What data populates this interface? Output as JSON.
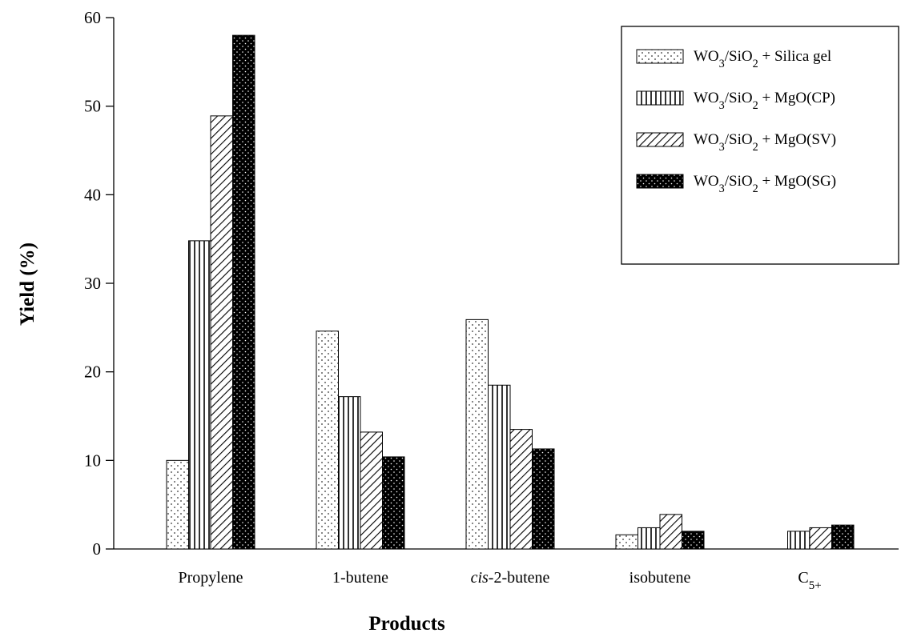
{
  "chart_data": {
    "type": "bar",
    "title": "",
    "xlabel": "Products",
    "ylabel": "Yield (%)",
    "ylim": [
      0,
      60
    ],
    "yticks": [
      0,
      10,
      20,
      30,
      40,
      50,
      60
    ],
    "grid": false,
    "legend_position": "top-right",
    "categories": [
      "Propylene",
      "1-butene",
      "cis-2-butene",
      "isobutene",
      "C5+"
    ],
    "series": [
      {
        "name": "WO3/SiO2 + Silica gel",
        "pattern": "dots-light",
        "values": [
          10.0,
          24.6,
          25.9,
          1.6,
          null
        ]
      },
      {
        "name": "WO3/SiO2 + MgO(CP)",
        "pattern": "vertical-lines",
        "values": [
          34.8,
          17.2,
          18.5,
          2.4,
          2.0
        ]
      },
      {
        "name": "WO3/SiO2 + MgO(SV)",
        "pattern": "diagonal-lines",
        "values": [
          48.9,
          13.2,
          13.5,
          3.9,
          2.4
        ]
      },
      {
        "name": "WO3/SiO2 + MgO(SG)",
        "pattern": "dots-dark",
        "values": [
          58.0,
          10.4,
          11.3,
          2.0,
          2.7
        ]
      }
    ]
  }
}
